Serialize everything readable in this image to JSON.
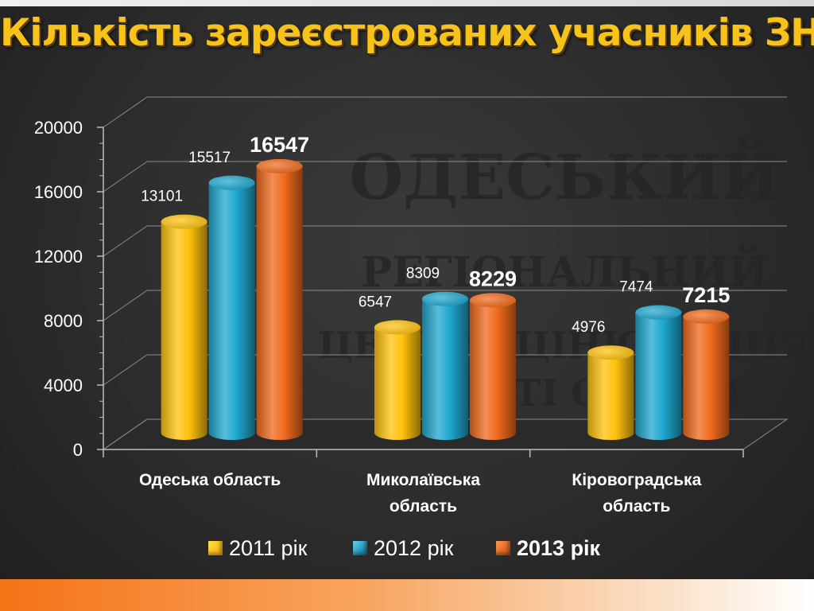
{
  "slide": {
    "title": "Кількість зареєстрованих учасників ЗНО"
  },
  "watermark": {
    "lines": [
      "ОДЕСЬКИЙ",
      "РЕГІОНАЛЬНИЙ",
      "ЦЕНТР ОЦІНЮВАННЯ",
      "ЯКОСТІ ОСВІТИ"
    ]
  },
  "colors": {
    "title": "#f7c21a",
    "accent_band": "#f47316",
    "series_2011": "#ffc20e",
    "series_2012": "#1fa7cf",
    "series_2013": "#f06a1c"
  },
  "chart_data": {
    "type": "bar",
    "title": "",
    "xlabel": "",
    "ylabel": "",
    "categories": [
      [
        "Одеська область"
      ],
      [
        "Миколаївська",
        "область"
      ],
      [
        "Кіровоградська",
        "область"
      ]
    ],
    "series": [
      {
        "name": "2011 рік",
        "values": [
          13101,
          6547,
          4976
        ],
        "color": "#ffc20e",
        "label_bold": false
      },
      {
        "name": "2012 рік",
        "values": [
          15517,
          8309,
          7474
        ],
        "color": "#1fa7cf",
        "label_bold": false
      },
      {
        "name": "2013 рік",
        "values": [
          16547,
          8229,
          7215
        ],
        "color": "#f06a1c",
        "label_bold": true
      }
    ],
    "ylim": [
      0,
      20000
    ],
    "yticks": [
      0,
      4000,
      8000,
      12000,
      16000,
      20000
    ],
    "grid": true,
    "legend_position": "bottom",
    "style": "3d cylinders"
  }
}
